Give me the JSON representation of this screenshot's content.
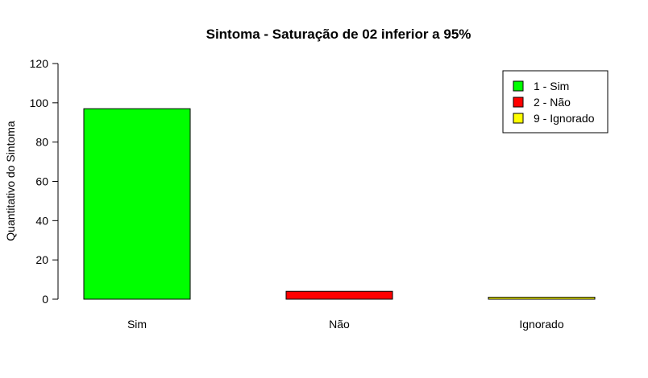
{
  "chart_data": {
    "type": "bar",
    "title": "Sintoma - Saturação de 02 inferior a 95%",
    "xlabel": "",
    "ylabel": "Quantitativo do Sintoma",
    "categories": [
      "Sim",
      "Não",
      "Ignorado"
    ],
    "values": [
      97,
      4,
      1
    ],
    "colors": [
      "#00ff00",
      "#ff0000",
      "#ffff00"
    ],
    "ylim": [
      0,
      120
    ],
    "yticks": [
      "0",
      "20",
      "40",
      "60",
      "80",
      "100",
      "120"
    ],
    "grid": false,
    "legend": {
      "position": "top-right",
      "entries": [
        "1 - Sim",
        "2 - Não",
        "9 - Ignorado"
      ]
    }
  }
}
